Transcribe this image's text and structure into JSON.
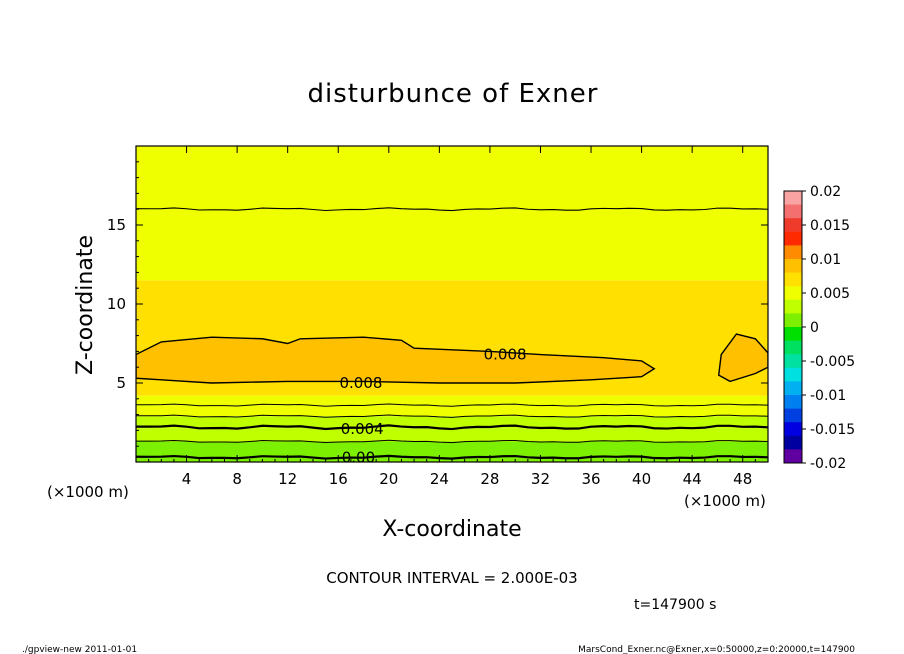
{
  "chart_data": {
    "type": "contour",
    "title": "disturbunce of Exner",
    "xlabel": "X-coordinate",
    "ylabel": "Z-coordinate",
    "x_unit": "(×1000 m)",
    "x_unit_right": "(×1000 m)",
    "z_unit": "(×1000 m)",
    "xlim": [
      0,
      50
    ],
    "ylim": [
      0,
      20
    ],
    "x_ticks": [
      4,
      8,
      12,
      16,
      20,
      24,
      28,
      32,
      36,
      40,
      44,
      48
    ],
    "x_tick_labels": [
      "4",
      "8",
      "12",
      "16",
      "20",
      "24",
      "28",
      "32",
      "36",
      "40",
      "44",
      "48"
    ],
    "y_ticks": [
      5,
      10,
      15
    ],
    "y_tick_labels": [
      "5",
      "10",
      "15"
    ],
    "contour_interval": "CONTOUR INTERVAL = 2.000E-03",
    "contour_labels": [
      {
        "text": "0.008",
        "x": 29.2,
        "z": 6.8
      },
      {
        "text": "0.008",
        "x": 17.8,
        "z": 5.0
      },
      {
        "text": "0.004",
        "x": 17.9,
        "z": 2.1
      },
      {
        "text": "0.00",
        "x": 17.6,
        "z": 0.3
      }
    ],
    "bands": [
      {
        "z0": 0.0,
        "z1": 0.6,
        "value": 0.001
      },
      {
        "z0": 0.6,
        "z1": 1.3,
        "value": 0.002
      },
      {
        "z0": 1.3,
        "z1": 2.1,
        "value": 0.003
      },
      {
        "z0": 2.1,
        "z1": 2.9,
        "value": 0.004
      },
      {
        "z0": 2.9,
        "z1": 3.6,
        "value": 0.005
      },
      {
        "z0": 3.6,
        "z1": 4.2,
        "value": 0.006
      },
      {
        "z0": 4.2,
        "z1": 11.5,
        "value": 0.0075
      },
      {
        "z0": 11.5,
        "z1": 20.0,
        "value": 0.006
      }
    ],
    "colorbar": {
      "min": -0.02,
      "max": 0.02,
      "tick_labels": [
        "0.02",
        "0.015",
        "0.01",
        "0.005",
        "0",
        "-0.005",
        "-0.01",
        "-0.015",
        "-0.02"
      ],
      "colors": [
        "#f9a3a3",
        "#f47070",
        "#ef3b2c",
        "#ff2a00",
        "#ff8c00",
        "#ffc000",
        "#ffe000",
        "#f0ff00",
        "#c0ff00",
        "#7cf000",
        "#00e000",
        "#00e060",
        "#00e0a0",
        "#00e0e0",
        "#00b0f0",
        "#0080f0",
        "#0040e0",
        "#0000e0",
        "#0000a0",
        "#6000a0"
      ]
    },
    "time_label": "t=147900 s"
  },
  "footer": {
    "left": "./gpview-new   2011-01-01",
    "right": "MarsCond_Exner.nc@Exner,x=0:50000,z=0:20000,t=147900"
  }
}
